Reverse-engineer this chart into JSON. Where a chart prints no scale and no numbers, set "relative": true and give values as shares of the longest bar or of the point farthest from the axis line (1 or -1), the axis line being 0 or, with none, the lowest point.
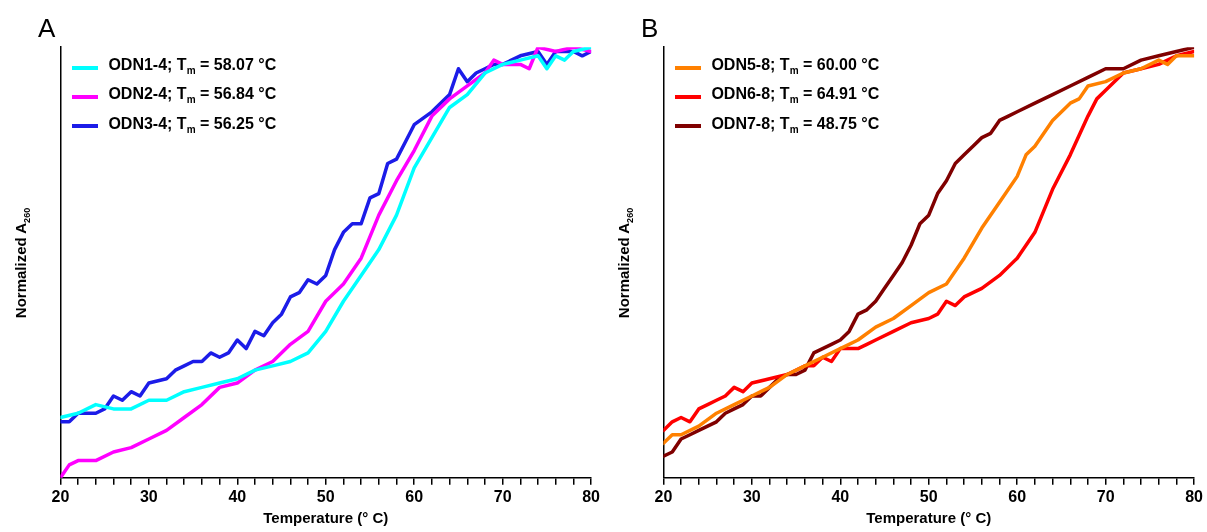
{
  "chart_data": [
    {
      "type": "line",
      "title": "A",
      "xlabel": "Temperature (° C)",
      "ylabel": "Normalized A$_{260}$",
      "relative": true,
      "legend": "top left",
      "grid": false,
      "marker": "none",
      "line_style": "solid",
      "xlim": [
        20,
        80
      ],
      "xticks": [
        20,
        {
          "value": 22,
          "label": null
        },
        {
          "value": 24,
          "label": null
        },
        {
          "value": 26,
          "label": null
        },
        {
          "value": 28,
          "label": null
        },
        30,
        {
          "value": 32,
          "label": null
        },
        {
          "value": 34,
          "label": null
        },
        {
          "value": 36,
          "label": null
        },
        {
          "value": 38,
          "label": null
        },
        40,
        {
          "value": 42,
          "label": null
        },
        {
          "value": 44,
          "label": null
        },
        {
          "value": 46,
          "label": null
        },
        {
          "value": 48,
          "label": null
        },
        50,
        {
          "value": 52,
          "label": null
        },
        {
          "value": 54,
          "label": null
        },
        {
          "value": 56,
          "label": null
        },
        {
          "value": 58,
          "label": null
        },
        60,
        {
          "value": 62,
          "label": null
        },
        {
          "value": 64,
          "label": null
        },
        {
          "value": 66,
          "label": null
        },
        {
          "value": 68,
          "label": null
        },
        70,
        {
          "value": 72,
          "label": null
        },
        {
          "value": 74,
          "label": null
        },
        {
          "value": 76,
          "label": null
        },
        {
          "value": 78,
          "label": null
        },
        80
      ],
      "series": [
        {
          "name": "ODN1-4; T$_{m}$ = 58.07 °C",
          "color": "#00ffff",
          "x": [
            20,
            22,
            24,
            26,
            28,
            30,
            32,
            34,
            36,
            38,
            40,
            42,
            44,
            46,
            48,
            50,
            52,
            54,
            56,
            58,
            60,
            62,
            64,
            66,
            68,
            70,
            72,
            74,
            75,
            76,
            77,
            78,
            80
          ],
          "values": [
            0.14,
            0.15,
            0.17,
            0.16,
            0.16,
            0.18,
            0.18,
            0.2,
            0.21,
            0.22,
            0.23,
            0.25,
            0.26,
            0.27,
            0.29,
            0.34,
            0.41,
            0.47,
            0.53,
            0.61,
            0.72,
            0.79,
            0.86,
            0.89,
            0.94,
            0.96,
            0.97,
            0.98,
            0.95,
            0.98,
            0.97,
            0.99,
            1.0
          ]
        },
        {
          "name": "ODN2-4; T$_{m}$ = 56.84 °C",
          "color": "#ff00ff",
          "x": [
            20,
            21,
            22,
            24,
            26,
            28,
            30,
            32,
            34,
            36,
            38,
            40,
            42,
            44,
            46,
            48,
            50,
            52,
            54,
            56,
            58,
            60,
            62,
            64,
            66,
            68,
            69,
            70,
            72,
            73,
            74,
            76,
            78,
            80
          ],
          "values": [
            0,
            0.03,
            0.04,
            0.04,
            0.06,
            0.07,
            0.09,
            0.11,
            0.14,
            0.17,
            0.21,
            0.22,
            0.25,
            0.27,
            0.31,
            0.34,
            0.41,
            0.45,
            0.51,
            0.61,
            0.69,
            0.76,
            0.84,
            0.88,
            0.91,
            0.94,
            0.97,
            0.96,
            0.96,
            0.95,
            1.0,
            0.99,
            1.0,
            0.99
          ]
        },
        {
          "name": "ODN3-4; T$_{m}$ = 56.25 °C",
          "color": "#1c1ce8",
          "x": [
            20,
            21,
            22,
            24,
            25,
            26,
            27,
            28,
            29,
            30,
            32,
            33,
            34,
            35,
            36,
            37,
            38,
            39,
            40,
            41,
            42,
            43,
            44,
            45,
            46,
            47,
            48,
            49,
            50,
            51,
            52,
            53,
            54,
            55,
            56,
            57,
            58,
            59,
            60,
            62,
            64,
            65,
            66,
            67,
            68,
            69,
            70,
            72,
            74,
            75,
            76,
            78,
            79,
            80
          ],
          "values": [
            0.13,
            0.13,
            0.15,
            0.15,
            0.16,
            0.19,
            0.18,
            0.2,
            0.19,
            0.22,
            0.23,
            0.25,
            0.26,
            0.27,
            0.27,
            0.29,
            0.28,
            0.29,
            0.32,
            0.3,
            0.34,
            0.33,
            0.36,
            0.38,
            0.42,
            0.43,
            0.46,
            0.45,
            0.47,
            0.53,
            0.57,
            0.59,
            0.59,
            0.65,
            0.66,
            0.73,
            0.74,
            0.78,
            0.82,
            0.85,
            0.89,
            0.95,
            0.92,
            0.94,
            0.95,
            0.96,
            0.96,
            0.98,
            0.99,
            0.96,
            0.99,
            0.99,
            0.98,
            0.99
          ]
        }
      ]
    },
    {
      "type": "line",
      "title": "B",
      "xlabel": "Temperature (° C)",
      "ylabel": "Normalized A$_{260}$",
      "relative": true,
      "legend": "top left",
      "grid": false,
      "marker": "none",
      "line_style": "solid",
      "xlim": [
        20,
        80
      ],
      "xticks": [
        20,
        {
          "value": 22,
          "label": null
        },
        {
          "value": 24,
          "label": null
        },
        {
          "value": 26,
          "label": null
        },
        {
          "value": 28,
          "label": null
        },
        30,
        {
          "value": 32,
          "label": null
        },
        {
          "value": 34,
          "label": null
        },
        {
          "value": 36,
          "label": null
        },
        {
          "value": 38,
          "label": null
        },
        40,
        {
          "value": 42,
          "label": null
        },
        {
          "value": 44,
          "label": null
        },
        {
          "value": 46,
          "label": null
        },
        {
          "value": 48,
          "label": null
        },
        50,
        {
          "value": 52,
          "label": null
        },
        {
          "value": 54,
          "label": null
        },
        {
          "value": 56,
          "label": null
        },
        {
          "value": 58,
          "label": null
        },
        60,
        {
          "value": 62,
          "label": null
        },
        {
          "value": 64,
          "label": null
        },
        {
          "value": 66,
          "label": null
        },
        {
          "value": 68,
          "label": null
        },
        70,
        {
          "value": 72,
          "label": null
        },
        {
          "value": 74,
          "label": null
        },
        {
          "value": 76,
          "label": null
        },
        {
          "value": 78,
          "label": null
        },
        80
      ],
      "series": [
        {
          "name": "ODN5-8; T$_{m}$ = 60.00 °C",
          "color": "#ff8000",
          "x": [
            20,
            21,
            22,
            24,
            26,
            28,
            30,
            32,
            34,
            36,
            38,
            40,
            42,
            44,
            46,
            48,
            50,
            52,
            54,
            56,
            58,
            60,
            61,
            62,
            64,
            66,
            67,
            68,
            70,
            72,
            74,
            76,
            77,
            78,
            80
          ],
          "values": [
            0.08,
            0.1,
            0.1,
            0.12,
            0.15,
            0.17,
            0.19,
            0.21,
            0.24,
            0.26,
            0.28,
            0.3,
            0.32,
            0.35,
            0.37,
            0.4,
            0.43,
            0.45,
            0.51,
            0.58,
            0.64,
            0.7,
            0.75,
            0.77,
            0.83,
            0.87,
            0.88,
            0.91,
            0.92,
            0.94,
            0.95,
            0.97,
            0.96,
            0.98,
            0.98
          ]
        },
        {
          "name": "ODN6-8; T$_{m}$ = 64.91 °C",
          "color": "#ff0000",
          "x": [
            20,
            21,
            22,
            23,
            24,
            25,
            26,
            27,
            28,
            29,
            30,
            32,
            34,
            36,
            37,
            38,
            39,
            40,
            42,
            43,
            44,
            46,
            48,
            50,
            51,
            52,
            53,
            54,
            56,
            58,
            60,
            62,
            64,
            66,
            68,
            69,
            70,
            72,
            74,
            76,
            78,
            80
          ],
          "values": [
            0.11,
            0.13,
            0.14,
            0.13,
            0.16,
            0.17,
            0.18,
            0.19,
            0.21,
            0.2,
            0.22,
            0.23,
            0.24,
            0.26,
            0.26,
            0.28,
            0.27,
            0.3,
            0.3,
            0.31,
            0.32,
            0.34,
            0.36,
            0.37,
            0.38,
            0.41,
            0.4,
            0.42,
            0.44,
            0.47,
            0.51,
            0.57,
            0.67,
            0.75,
            0.84,
            0.88,
            0.9,
            0.94,
            0.95,
            0.96,
            0.98,
            0.99
          ]
        },
        {
          "name": "ODN7-8; T$_{m}$ = 48.75 °C",
          "color": "#800000",
          "x": [
            20,
            21,
            22,
            23,
            24,
            25,
            26,
            27,
            28,
            29,
            30,
            31,
            32,
            33,
            34,
            35,
            36,
            37,
            38,
            39,
            40,
            41,
            42,
            43,
            44,
            45,
            46,
            47,
            48,
            49,
            50,
            51,
            52,
            53,
            54,
            55,
            56,
            57,
            58,
            59,
            60,
            62,
            64,
            66,
            68,
            70,
            72,
            74,
            76,
            78,
            80
          ],
          "values": [
            0.05,
            0.06,
            0.09,
            0.1,
            0.11,
            0.12,
            0.13,
            0.15,
            0.16,
            0.17,
            0.19,
            0.19,
            0.21,
            0.23,
            0.24,
            0.24,
            0.25,
            0.29,
            0.3,
            0.31,
            0.32,
            0.34,
            0.38,
            0.39,
            0.41,
            0.44,
            0.47,
            0.5,
            0.54,
            0.59,
            0.61,
            0.66,
            0.69,
            0.73,
            0.75,
            0.77,
            0.79,
            0.8,
            0.83,
            0.84,
            0.85,
            0.87,
            0.89,
            0.91,
            0.93,
            0.95,
            0.95,
            0.97,
            0.98,
            0.99,
            1.0
          ]
        }
      ]
    }
  ]
}
